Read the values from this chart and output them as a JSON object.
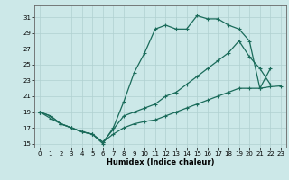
{
  "xlabel": "Humidex (Indice chaleur)",
  "bg_color": "#cce8e8",
  "grid_color": "#b0d0d0",
  "line_color": "#1a6b5a",
  "xlim": [
    -0.5,
    23.5
  ],
  "ylim": [
    14.5,
    32.5
  ],
  "yticks": [
    15,
    17,
    19,
    21,
    23,
    25,
    27,
    29,
    31
  ],
  "xticks": [
    0,
    1,
    2,
    3,
    4,
    5,
    6,
    7,
    8,
    9,
    10,
    11,
    12,
    13,
    14,
    15,
    16,
    17,
    18,
    19,
    20,
    21,
    22,
    23
  ],
  "line1_x": [
    0,
    1,
    2,
    3,
    4,
    5,
    6,
    7,
    8,
    9,
    10,
    11,
    12,
    13,
    14,
    15,
    16,
    17,
    18,
    19,
    20,
    21,
    22
  ],
  "line1_y": [
    19,
    18.2,
    17.5,
    17.0,
    16.5,
    16.2,
    15.0,
    17.0,
    20.3,
    24.0,
    26.5,
    29.5,
    30.0,
    29.5,
    29.5,
    31.2,
    30.8,
    30.8,
    30.0,
    29.5,
    28.0,
    22.0,
    24.5
  ],
  "line2_x": [
    0,
    1,
    2,
    3,
    4,
    5,
    6,
    7,
    8,
    9,
    10,
    11,
    12,
    13,
    14,
    15,
    16,
    17,
    18,
    19,
    20,
    21,
    22,
    23
  ],
  "line2_y": [
    19.0,
    18.5,
    17.5,
    17.0,
    16.5,
    16.2,
    15.2,
    16.2,
    17.0,
    17.5,
    17.8,
    18.0,
    18.5,
    19.0,
    19.5,
    20.0,
    20.5,
    21.0,
    21.5,
    22.0,
    22.0,
    22.0,
    22.2,
    22.3
  ],
  "line3_x": [
    0,
    1,
    2,
    3,
    4,
    5,
    6,
    7,
    8,
    9,
    10,
    11,
    12,
    13,
    14,
    15,
    16,
    17,
    18,
    19,
    20,
    21,
    22
  ],
  "line3_y": [
    19.0,
    18.5,
    17.5,
    17.0,
    16.5,
    16.2,
    15.2,
    16.8,
    18.5,
    19.0,
    19.5,
    20.0,
    21.0,
    21.5,
    22.5,
    23.5,
    24.5,
    25.5,
    26.5,
    28.0,
    26.0,
    24.5,
    22.5
  ]
}
